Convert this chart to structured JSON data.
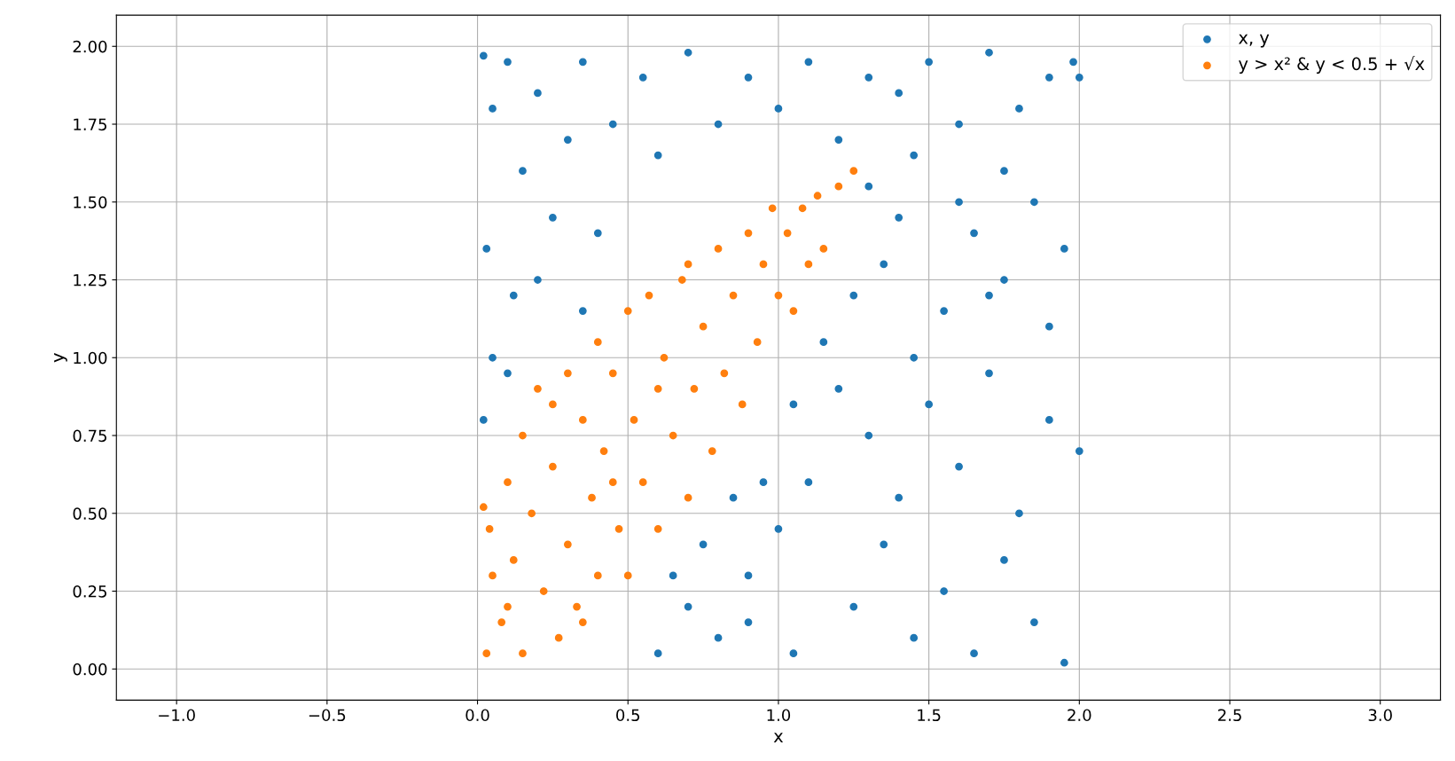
{
  "chart_data": {
    "type": "scatter",
    "xlabel": "x",
    "ylabel": "y",
    "xlim": [
      -1.2,
      3.2
    ],
    "xticks": [
      {
        "value": -1.0,
        "label": "−1.0"
      },
      {
        "value": -0.5,
        "label": "−0.5"
      },
      {
        "value": 0.0,
        "label": "0.0"
      },
      {
        "value": 0.5,
        "label": "0.5"
      },
      {
        "value": 1.0,
        "label": "1.0"
      },
      {
        "value": 1.5,
        "label": "1.5"
      },
      {
        "value": 2.0,
        "label": "2.0"
      },
      {
        "value": 2.5,
        "label": "2.5"
      },
      {
        "value": 3.0,
        "label": "3.0"
      }
    ],
    "ylim": [
      -0.1,
      2.1
    ],
    "yticks": [
      {
        "value": 0.0,
        "label": "0.00"
      },
      {
        "value": 0.25,
        "label": "0.25"
      },
      {
        "value": 0.5,
        "label": "0.50"
      },
      {
        "value": 0.75,
        "label": "0.75"
      },
      {
        "value": 1.0,
        "label": "1.00"
      },
      {
        "value": 1.25,
        "label": "1.25"
      },
      {
        "value": 1.5,
        "label": "1.50"
      },
      {
        "value": 1.75,
        "label": "1.75"
      },
      {
        "value": 2.0,
        "label": "2.00"
      }
    ],
    "grid": true,
    "legend": "top right",
    "marker": "circle",
    "series": [
      {
        "name": "x, y",
        "color": "#1f77b4",
        "x": [
          0.02,
          0.05,
          0.1,
          0.15,
          0.2,
          0.3,
          0.35,
          0.45,
          0.55,
          0.6,
          0.7,
          0.8,
          0.9,
          1.0,
          1.1,
          1.2,
          1.3,
          1.4,
          1.5,
          1.6,
          1.7,
          1.8,
          1.9,
          1.98,
          0.03,
          0.12,
          0.25,
          0.4,
          0.05,
          0.2,
          0.35,
          0.02,
          0.1,
          0.9,
          1.05,
          1.25,
          1.35,
          1.45,
          1.55,
          1.65,
          1.75,
          1.85,
          1.95,
          1.1,
          1.2,
          1.3,
          1.4,
          1.5,
          1.6,
          1.7,
          1.8,
          1.9,
          2.0,
          0.95,
          1.05,
          1.15,
          1.25,
          1.35,
          1.45,
          1.55,
          1.65,
          1.75,
          1.85,
          1.95,
          0.6,
          0.7,
          0.8,
          0.9,
          1.0,
          0.65,
          0.75,
          0.85,
          1.3,
          1.45,
          1.6,
          1.75,
          1.9,
          1.4,
          1.7,
          2.0
        ],
        "values": [
          1.97,
          1.8,
          1.95,
          1.6,
          1.85,
          1.7,
          1.95,
          1.75,
          1.9,
          1.65,
          1.98,
          1.75,
          1.9,
          1.8,
          1.95,
          1.7,
          1.9,
          1.85,
          1.95,
          1.75,
          1.98,
          1.8,
          1.9,
          1.95,
          1.35,
          1.2,
          1.45,
          1.4,
          1.0,
          1.25,
          1.15,
          0.8,
          0.95,
          0.3,
          0.05,
          0.2,
          0.4,
          0.1,
          0.25,
          0.05,
          0.35,
          0.15,
          0.02,
          0.6,
          0.9,
          0.75,
          0.55,
          0.85,
          0.65,
          0.95,
          0.5,
          0.8,
          0.7,
          0.6,
          0.85,
          1.05,
          1.2,
          1.3,
          1.0,
          1.15,
          1.4,
          1.25,
          1.5,
          1.35,
          0.05,
          0.2,
          0.1,
          0.15,
          0.45,
          0.3,
          0.4,
          0.55,
          1.55,
          1.65,
          1.5,
          1.6,
          1.1,
          1.45,
          1.2,
          1.9
        ]
      },
      {
        "name": "y > x² & y < 0.5 + √x",
        "color": "#ff7f0e",
        "x": [
          0.02,
          0.03,
          0.05,
          0.04,
          0.08,
          0.1,
          0.12,
          0.15,
          0.15,
          0.18,
          0.2,
          0.22,
          0.25,
          0.27,
          0.3,
          0.3,
          0.33,
          0.35,
          0.38,
          0.4,
          0.4,
          0.42,
          0.45,
          0.47,
          0.5,
          0.5,
          0.52,
          0.55,
          0.57,
          0.6,
          0.62,
          0.65,
          0.68,
          0.7,
          0.72,
          0.75,
          0.78,
          0.8,
          0.82,
          0.85,
          0.88,
          0.9,
          0.93,
          0.95,
          0.98,
          1.0,
          1.03,
          1.05,
          1.08,
          1.1,
          1.13,
          1.15,
          1.2,
          1.25,
          0.35,
          0.6,
          0.7,
          0.25,
          0.1,
          0.45
        ],
        "values": [
          0.52,
          0.05,
          0.3,
          0.45,
          0.15,
          0.6,
          0.35,
          0.75,
          0.05,
          0.5,
          0.9,
          0.25,
          0.65,
          0.1,
          0.95,
          0.4,
          0.2,
          0.8,
          0.55,
          1.05,
          0.3,
          0.7,
          0.95,
          0.45,
          1.15,
          0.3,
          0.8,
          0.6,
          1.2,
          0.45,
          1.0,
          0.75,
          1.25,
          0.55,
          0.9,
          1.1,
          0.7,
          1.35,
          0.95,
          1.2,
          0.85,
          1.4,
          1.05,
          1.3,
          1.48,
          1.2,
          1.4,
          1.15,
          1.48,
          1.3,
          1.52,
          1.35,
          1.55,
          1.6,
          0.15,
          0.9,
          1.3,
          0.85,
          0.2,
          0.6
        ]
      }
    ]
  }
}
